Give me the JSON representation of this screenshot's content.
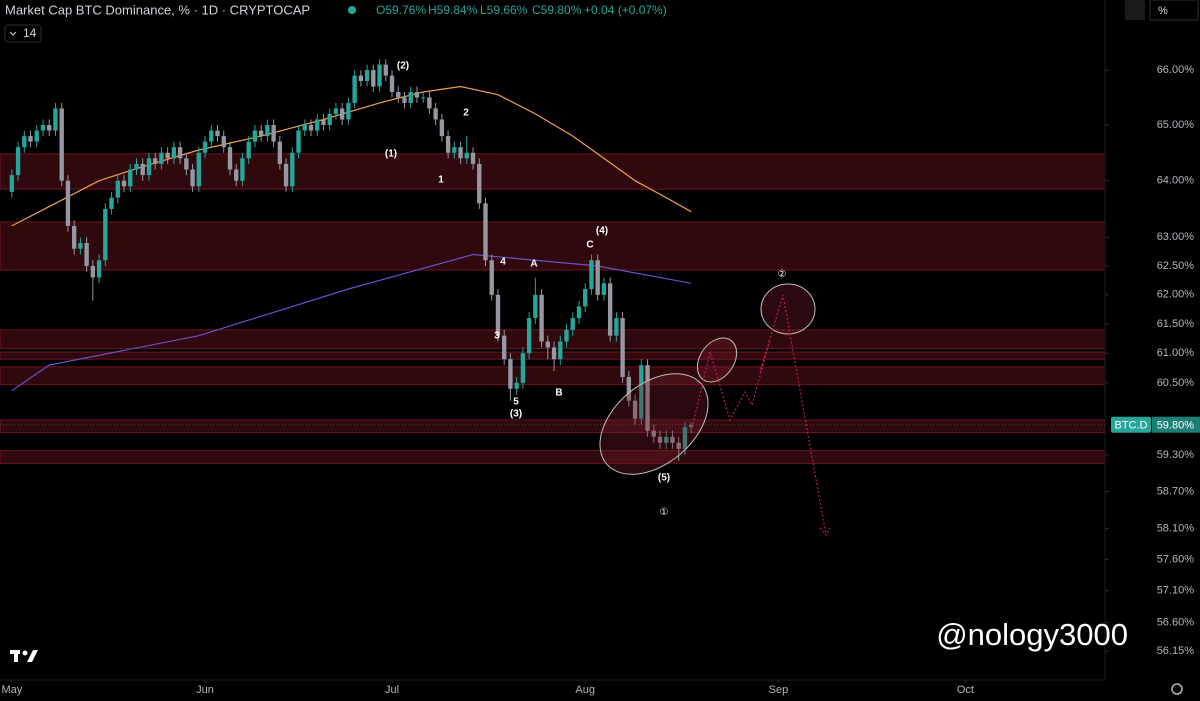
{
  "chart_data": {
    "type": "candlestick",
    "title": "Market Cap BTC Dominance, % · 1D · CRYPTOCAP",
    "ohlc_labels": [
      "O59.76%",
      "H59.84%",
      "L59.66%",
      "C59.80%",
      "+0.04 (+0.07%)"
    ],
    "indicator_count": "14",
    "scale_button": "%",
    "watermark": "@nology3000",
    "last_price": {
      "name": "BTC.D",
      "label": "59.80%",
      "value": 59.8
    },
    "up_color": "#26a69a",
    "down_color": "#9598a1",
    "zone_color": "#6b1520",
    "log_scale": true,
    "grid": false,
    "xlim": [
      -1.9,
      175.4
    ],
    "ylim": [
      55.7,
      67.3
    ],
    "xticks": [
      {
        "value": 0,
        "label": "May"
      },
      {
        "value": 31,
        "label": "Jun"
      },
      {
        "value": 61,
        "label": "Jul"
      },
      {
        "value": 92,
        "label": "Aug"
      },
      {
        "value": 123,
        "label": "Sep"
      },
      {
        "value": 153,
        "label": "Oct"
      }
    ],
    "yticks": [
      {
        "value": 66,
        "label": "66.00%"
      },
      {
        "value": 65,
        "label": "65.00%"
      },
      {
        "value": 64,
        "label": "64.00%"
      },
      {
        "value": 63,
        "label": "63.00%"
      },
      {
        "value": 62.5,
        "label": "62.50%"
      },
      {
        "value": 62,
        "label": "62.00%"
      },
      {
        "value": 61.5,
        "label": "61.50%"
      },
      {
        "value": 61,
        "label": "61.00%"
      },
      {
        "value": 60.5,
        "label": "60.50%"
      },
      {
        "value": 59.3,
        "label": "59.30%"
      },
      {
        "value": 58.7,
        "label": "58.70%"
      },
      {
        "value": 58.1,
        "label": "58.10%"
      },
      {
        "value": 57.6,
        "label": "57.60%"
      },
      {
        "value": 57.1,
        "label": "57.10%"
      },
      {
        "value": 56.6,
        "label": "56.60%"
      },
      {
        "value": 56.15,
        "label": "56.15%"
      }
    ],
    "x": [
      0,
      1,
      2,
      3,
      4,
      5,
      6,
      7,
      8,
      9,
      10,
      11,
      12,
      13,
      14,
      15,
      16,
      17,
      18,
      19,
      20,
      21,
      22,
      23,
      24,
      25,
      26,
      27,
      28,
      29,
      30,
      31,
      32,
      33,
      34,
      35,
      36,
      37,
      38,
      39,
      40,
      41,
      42,
      43,
      44,
      45,
      46,
      47,
      48,
      49,
      50,
      51,
      52,
      53,
      54,
      55,
      56,
      57,
      58,
      59,
      60,
      61,
      62,
      63,
      64,
      65,
      66,
      67,
      68,
      69,
      70,
      71,
      72,
      73,
      74,
      75,
      76,
      77,
      78,
      79,
      80,
      81,
      82,
      83,
      84,
      85,
      86,
      87,
      88,
      89,
      90,
      91,
      92,
      93,
      94,
      95,
      96,
      97,
      98,
      99,
      100,
      101,
      102,
      103,
      104,
      105,
      106,
      107,
      108,
      109
    ],
    "open": [
      63.8,
      64.1,
      64.6,
      64.8,
      64.7,
      64.9,
      65.0,
      64.9,
      65.3,
      64.0,
      63.2,
      62.8,
      62.9,
      62.5,
      62.3,
      62.6,
      63.5,
      63.7,
      64.0,
      63.9,
      64.2,
      64.3,
      64.1,
      64.4,
      64.3,
      64.5,
      64.4,
      64.6,
      64.4,
      64.2,
      63.9,
      64.5,
      64.7,
      64.9,
      64.8,
      64.6,
      64.2,
      64.0,
      64.4,
      64.7,
      64.9,
      64.8,
      65.0,
      64.7,
      64.3,
      63.9,
      64.5,
      64.9,
      65.0,
      64.9,
      65.1,
      65.0,
      65.2,
      65.3,
      65.1,
      65.4,
      65.9,
      65.8,
      66.0,
      65.7,
      66.1,
      65.9,
      65.6,
      65.5,
      65.4,
      65.6,
      65.5,
      65.5,
      65.3,
      65.1,
      64.8,
      64.5,
      64.6,
      64.4,
      64.5,
      64.3,
      63.6,
      62.6,
      62.0,
      61.3,
      60.9,
      60.4,
      60.5,
      61.0,
      61.6,
      62.0,
      61.2,
      61.1,
      60.9,
      61.2,
      61.4,
      61.6,
      61.8,
      62.1,
      62.6,
      62.0,
      62.2,
      61.3,
      61.6,
      60.6,
      60.2,
      59.9,
      60.8,
      59.7,
      59.6,
      59.5,
      59.6,
      59.5,
      59.4,
      59.76
    ],
    "high": [
      64.2,
      64.7,
      64.9,
      64.9,
      65.0,
      65.1,
      65.1,
      65.4,
      65.4,
      64.1,
      63.3,
      63.0,
      63.0,
      62.6,
      62.7,
      63.6,
      63.8,
      64.1,
      64.1,
      64.3,
      64.4,
      64.4,
      64.5,
      64.5,
      64.6,
      64.6,
      64.7,
      64.7,
      64.5,
      64.3,
      64.6,
      64.8,
      65.0,
      65.0,
      64.9,
      64.7,
      64.3,
      64.5,
      64.8,
      65.0,
      65.0,
      65.1,
      65.1,
      64.8,
      64.4,
      64.6,
      65.0,
      65.1,
      65.1,
      65.2,
      65.2,
      65.3,
      65.4,
      65.4,
      65.5,
      66.0,
      66.0,
      66.1,
      66.1,
      66.2,
      66.2,
      66.0,
      65.7,
      65.6,
      65.7,
      65.7,
      65.6,
      65.6,
      65.4,
      65.2,
      64.9,
      64.7,
      64.7,
      64.8,
      64.6,
      64.4,
      63.7,
      62.7,
      62.1,
      61.4,
      61.0,
      60.6,
      61.1,
      61.7,
      62.3,
      62.1,
      61.3,
      61.2,
      61.3,
      61.5,
      61.7,
      61.9,
      62.2,
      62.7,
      62.7,
      62.3,
      62.3,
      61.7,
      61.7,
      60.7,
      60.3,
      60.9,
      60.9,
      59.8,
      59.7,
      59.7,
      59.7,
      59.6,
      59.85,
      59.84
    ],
    "low": [
      63.7,
      64.0,
      64.5,
      64.6,
      64.6,
      64.8,
      64.8,
      64.8,
      63.9,
      63.1,
      62.7,
      62.7,
      62.4,
      61.9,
      62.2,
      62.5,
      63.4,
      63.6,
      63.8,
      63.8,
      64.1,
      64.0,
      64.0,
      64.2,
      64.2,
      64.3,
      64.3,
      64.3,
      64.1,
      63.8,
      63.8,
      64.4,
      64.6,
      64.7,
      64.5,
      64.1,
      63.9,
      63.9,
      64.3,
      64.6,
      64.7,
      64.7,
      64.6,
      64.2,
      63.8,
      63.8,
      64.4,
      64.8,
      64.8,
      64.8,
      64.9,
      64.9,
      65.1,
      65.0,
      65.0,
      65.3,
      65.7,
      65.7,
      65.6,
      65.6,
      65.8,
      65.5,
      65.4,
      65.3,
      65.3,
      65.4,
      65.4,
      65.2,
      65.0,
      64.7,
      64.4,
      64.4,
      64.3,
      64.3,
      64.2,
      63.5,
      62.5,
      61.9,
      61.2,
      60.8,
      60.2,
      60.3,
      60.4,
      60.9,
      61.5,
      61.1,
      60.9,
      60.7,
      60.8,
      61.1,
      61.3,
      61.5,
      61.7,
      62.0,
      61.9,
      61.9,
      61.2,
      61.2,
      60.5,
      60.1,
      59.8,
      59.8,
      59.6,
      59.5,
      59.4,
      59.4,
      59.4,
      59.2,
      59.3,
      59.66
    ],
    "close": [
      64.1,
      64.6,
      64.8,
      64.7,
      64.9,
      65.0,
      64.9,
      65.3,
      64.0,
      63.2,
      62.8,
      62.9,
      62.5,
      62.3,
      62.6,
      63.5,
      63.7,
      64.0,
      63.9,
      64.2,
      64.3,
      64.1,
      64.4,
      64.3,
      64.5,
      64.4,
      64.6,
      64.4,
      64.2,
      63.9,
      64.5,
      64.7,
      64.9,
      64.8,
      64.6,
      64.2,
      64.0,
      64.4,
      64.7,
      64.9,
      64.8,
      65.0,
      64.7,
      64.3,
      63.9,
      64.5,
      64.9,
      65.0,
      64.9,
      65.1,
      65.0,
      65.2,
      65.3,
      65.1,
      65.4,
      65.9,
      65.8,
      66.0,
      65.7,
      66.1,
      65.9,
      65.6,
      65.5,
      65.4,
      65.6,
      65.5,
      65.5,
      65.3,
      65.1,
      64.8,
      64.5,
      64.6,
      64.4,
      64.5,
      64.3,
      63.6,
      62.6,
      62.0,
      61.3,
      60.9,
      60.4,
      60.5,
      61.0,
      61.6,
      62.0,
      61.2,
      61.1,
      60.9,
      61.2,
      61.4,
      61.6,
      61.8,
      62.1,
      62.6,
      62.0,
      62.2,
      61.3,
      61.6,
      60.6,
      60.2,
      59.9,
      60.8,
      59.7,
      59.6,
      59.5,
      59.6,
      59.5,
      59.4,
      59.76,
      59.8
    ],
    "series": [
      {
        "color": "#f0a04b",
        "x": [
          0,
          7,
          14,
          21,
          30,
          40,
          50,
          59,
          66,
          72,
          78,
          84,
          90,
          94,
          100,
          105,
          109
        ],
        "values": [
          63.2,
          63.6,
          64.0,
          64.25,
          64.55,
          64.8,
          65.1,
          65.4,
          65.6,
          65.7,
          65.55,
          65.2,
          64.8,
          64.48,
          64.0,
          63.7,
          63.45
        ]
      },
      {
        "color": "#6a4fc9",
        "x": [
          0,
          6,
          30,
          54,
          74,
          94,
          109
        ],
        "values": [
          60.37,
          60.8,
          61.3,
          62.1,
          62.7,
          62.5,
          62.2
        ]
      }
    ],
    "zones": [
      {
        "from": 64.48,
        "to": 63.85
      },
      {
        "from": 63.27,
        "to": 62.43
      },
      {
        "from": 61.4,
        "to": 61.08
      },
      {
        "from": 61.02,
        "to": 60.9
      },
      {
        "from": 60.77,
        "to": 60.47
      },
      {
        "from": 59.88,
        "to": 59.67
      },
      {
        "from": 59.37,
        "to": 59.16
      }
    ],
    "annotations": [
      "(2)",
      "2",
      "(1)",
      "1",
      "4",
      "A",
      "C",
      "(4)",
      "3",
      "5",
      "(3)",
      "B",
      "(5)",
      "①",
      "②"
    ]
  }
}
